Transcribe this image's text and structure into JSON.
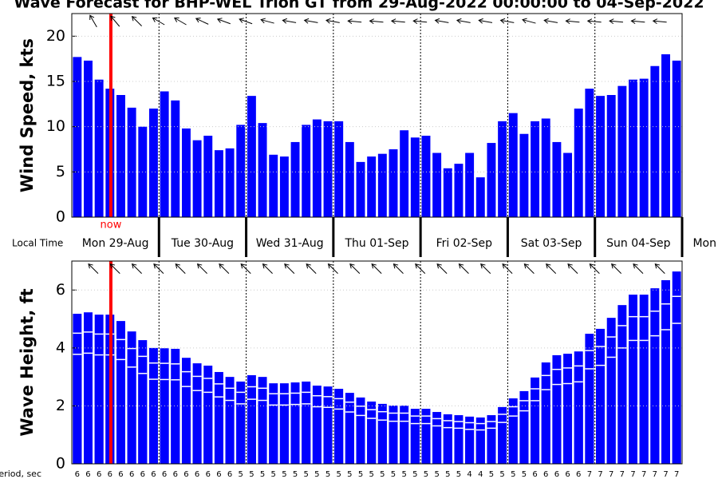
{
  "chart_data": [
    {
      "type": "bar",
      "title": "Wave Forecast for BHP-WEL Trion GT from 29-Aug-2022 00:00:00 to 04-Sep-2022",
      "ylabel": "Wind Speed, kts",
      "color": "#0000ff",
      "xlim": [
        0,
        168
      ],
      "xticks": [
        0,
        24,
        48,
        72,
        96,
        120,
        144,
        168
      ],
      "ylim": [
        0,
        22.5
      ],
      "yticks": [
        0,
        5,
        10,
        15,
        20
      ],
      "grid": true,
      "x": [
        1.5,
        4.5,
        7.5,
        10.5,
        13.5,
        16.5,
        19.5,
        22.5,
        25.5,
        28.5,
        31.5,
        34.5,
        37.5,
        40.5,
        43.5,
        46.5,
        49.5,
        52.5,
        55.5,
        58.5,
        61.5,
        64.5,
        67.5,
        70.5,
        73.5,
        76.5,
        79.5,
        82.5,
        85.5,
        88.5,
        91.5,
        94.5,
        97.5,
        100.5,
        103.5,
        106.5,
        109.5,
        112.5,
        115.5,
        118.5,
        121.5,
        124.5,
        127.5,
        130.5,
        133.5,
        136.5,
        139.5,
        142.5,
        145.5,
        148.5,
        151.5,
        154.5,
        157.5,
        160.5,
        163.5,
        166.5
      ],
      "values": [
        17.7,
        17.3,
        15.2,
        14.2,
        13.5,
        12.1,
        10.0,
        12.0,
        13.9,
        12.9,
        9.8,
        8.5,
        9.0,
        7.4,
        7.6,
        10.2,
        13.4,
        10.4,
        6.9,
        6.7,
        8.3,
        10.2,
        10.8,
        10.6,
        10.6,
        8.3,
        6.1,
        6.7,
        7.0,
        7.5,
        9.6,
        8.8,
        9.0,
        7.1,
        5.4,
        5.9,
        7.1,
        4.4,
        8.2,
        10.6,
        11.5,
        9.2,
        10.6,
        10.9,
        8.3,
        7.1,
        12.0,
        14.2,
        13.4,
        13.5,
        14.5,
        15.2,
        15.3,
        16.7,
        18.0,
        17.3
      ],
      "now": {
        "label": "now",
        "x": 10.75,
        "color": "#ff0000"
      },
      "x_axis_title": "Local Time",
      "day_labels": [
        {
          "label": "Mon 29-Aug",
          "x": 12
        },
        {
          "label": "Tue 30-Aug",
          "x": 36
        },
        {
          "label": "Wed 31-Aug",
          "x": 60
        },
        {
          "label": "Thu 01-Sep",
          "x": 84
        },
        {
          "label": "Fri 02-Sep",
          "x": 108
        },
        {
          "label": "Sat 03-Sep",
          "x": 132
        },
        {
          "label": "Sun 04-Sep",
          "x": 156
        },
        {
          "label": "Mon",
          "x": 180
        }
      ],
      "arrow_x": [
        6,
        12,
        18,
        24,
        30,
        36,
        42,
        48,
        54,
        60,
        66,
        72,
        78,
        84,
        90,
        96,
        102,
        108,
        114,
        120,
        126,
        132,
        138,
        144,
        150,
        156,
        162
      ],
      "arrow_dir": [
        330,
        320,
        315,
        300,
        300,
        295,
        290,
        290,
        285,
        280,
        280,
        280,
        275,
        275,
        275,
        275,
        280,
        280,
        280,
        280,
        285,
        280,
        275,
        275,
        275,
        275,
        275
      ]
    },
    {
      "type": "bar",
      "ylabel": "Wave Height, ft",
      "xlim": [
        0,
        168
      ],
      "xticks": [
        0,
        24,
        48,
        72,
        96,
        120,
        144,
        168
      ],
      "ylim": [
        0,
        7
      ],
      "yticks": [
        0,
        2,
        4,
        6
      ],
      "grid": true,
      "x": [
        1.5,
        4.5,
        7.5,
        10.5,
        13.5,
        16.5,
        19.5,
        22.5,
        25.5,
        28.5,
        31.5,
        34.5,
        37.5,
        40.5,
        43.5,
        46.5,
        49.5,
        52.5,
        55.5,
        58.5,
        61.5,
        64.5,
        67.5,
        70.5,
        73.5,
        76.5,
        79.5,
        82.5,
        85.5,
        88.5,
        91.5,
        94.5,
        97.5,
        100.5,
        103.5,
        106.5,
        109.5,
        112.5,
        115.5,
        118.5,
        121.5,
        124.5,
        127.5,
        130.5,
        133.5,
        136.5,
        139.5,
        142.5,
        145.5,
        148.5,
        151.5,
        154.5,
        157.5,
        160.5,
        163.5,
        166.5
      ],
      "series": [
        {
          "color": "#0000ff",
          "values": [
            5.18,
            5.23,
            5.15,
            5.15,
            4.93,
            4.57,
            4.27,
            4.0,
            3.99,
            3.97,
            3.66,
            3.47,
            3.39,
            3.17,
            3.0,
            2.84,
            3.06,
            3.0,
            2.78,
            2.78,
            2.81,
            2.84,
            2.7,
            2.67,
            2.59,
            2.45,
            2.29,
            2.15,
            2.07,
            2.01,
            2.01,
            1.9,
            1.9,
            1.79,
            1.71,
            1.68,
            1.63,
            1.6,
            1.68,
            1.96,
            2.26,
            2.51,
            2.98,
            3.5,
            3.75,
            3.8,
            3.88,
            4.49,
            4.66,
            5.04,
            5.48,
            5.84,
            5.84,
            6.06,
            6.34,
            6.64
          ]
        },
        {
          "color": "#0000ff",
          "values": [
            4.51,
            4.55,
            4.48,
            4.48,
            4.29,
            3.98,
            3.71,
            3.48,
            3.47,
            3.45,
            3.18,
            3.02,
            2.95,
            2.76,
            2.61,
            2.47,
            2.66,
            2.61,
            2.42,
            2.42,
            2.44,
            2.47,
            2.35,
            2.32,
            2.25,
            2.13,
            1.99,
            1.87,
            1.8,
            1.75,
            1.75,
            1.65,
            1.65,
            1.56,
            1.49,
            1.46,
            1.42,
            1.39,
            1.46,
            1.71,
            1.97,
            2.18,
            2.59,
            3.05,
            3.26,
            3.31,
            3.38,
            3.91,
            4.05,
            4.38,
            4.77,
            5.08,
            5.08,
            5.27,
            5.52,
            5.78
          ]
        },
        {
          "color": "#0000ff",
          "values": [
            3.78,
            3.82,
            3.76,
            3.76,
            3.6,
            3.34,
            3.12,
            2.92,
            2.91,
            2.9,
            2.67,
            2.53,
            2.47,
            2.31,
            2.19,
            2.07,
            2.23,
            2.19,
            2.03,
            2.03,
            2.05,
            2.07,
            1.97,
            1.95,
            1.89,
            1.79,
            1.67,
            1.57,
            1.51,
            1.47,
            1.47,
            1.39,
            1.39,
            1.31,
            1.25,
            1.23,
            1.19,
            1.17,
            1.23,
            1.43,
            1.65,
            1.83,
            2.18,
            2.56,
            2.74,
            2.77,
            2.83,
            3.28,
            3.4,
            3.68,
            4.0,
            4.26,
            4.26,
            4.42,
            4.63,
            4.85
          ]
        }
      ],
      "now": {
        "x": 10.75,
        "color": "#ff0000"
      },
      "period_label": "Period, sec",
      "periods": [
        6,
        6,
        6,
        6,
        6,
        6,
        6,
        6,
        6,
        6,
        6,
        6,
        6,
        6,
        6,
        5,
        5,
        5,
        5,
        5,
        5,
        5,
        5,
        5,
        5,
        5,
        5,
        5,
        5,
        5,
        5,
        5,
        5,
        5,
        5,
        5,
        4,
        4,
        5,
        5,
        5,
        5,
        6,
        6,
        6,
        6,
        6,
        7,
        7,
        7,
        7,
        7,
        7,
        7,
        7,
        7
      ],
      "arrow_x": [
        6,
        12,
        18,
        24,
        30,
        36,
        42,
        48,
        54,
        60,
        66,
        72,
        78,
        84,
        90,
        96,
        102,
        108,
        114,
        120,
        126,
        132,
        138,
        144,
        150,
        156,
        162
      ],
      "arrow_dir": [
        315,
        315,
        315,
        315,
        315,
        315,
        315,
        315,
        315,
        315,
        315,
        315,
        315,
        315,
        315,
        315,
        315,
        315,
        315,
        315,
        315,
        315,
        315,
        315,
        315,
        315,
        315
      ]
    }
  ]
}
